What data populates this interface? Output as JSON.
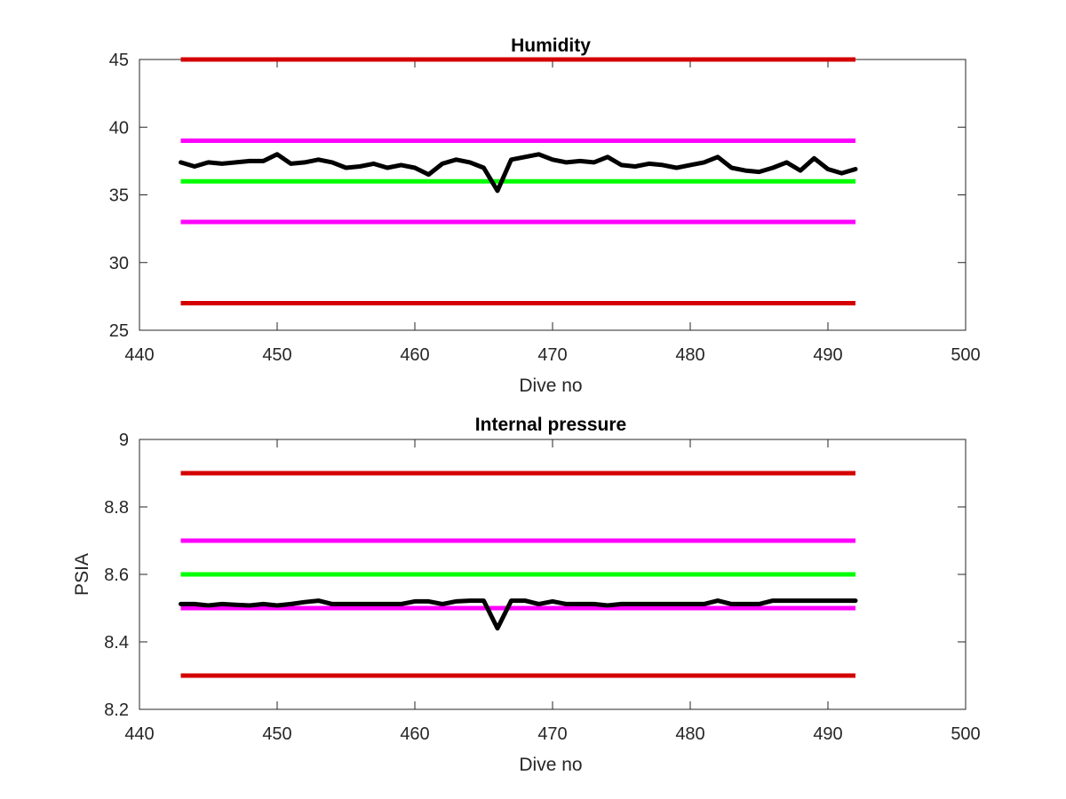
{
  "colors": {
    "red": "#d40000",
    "magenta": "#ff00ff",
    "green": "#00ff00",
    "black": "#000000",
    "axis": "#262626"
  },
  "chart_data": [
    {
      "type": "line",
      "title": "Humidity",
      "xlabel": "Dive no",
      "ylabel": "",
      "xlim": [
        440,
        500
      ],
      "ylim": [
        25,
        45
      ],
      "xticks": [
        "440",
        "450",
        "460",
        "470",
        "480",
        "490",
        "500"
      ],
      "yticks": [
        "25",
        "30",
        "35",
        "40",
        "45"
      ],
      "grid": false,
      "legend": "none",
      "reference_lines": [
        {
          "color": "red",
          "y": 45,
          "x_range": [
            443,
            492
          ]
        },
        {
          "color": "magenta",
          "y": 39,
          "x_range": [
            443,
            492
          ]
        },
        {
          "color": "green",
          "y": 36,
          "x_range": [
            443,
            492
          ]
        },
        {
          "color": "magenta",
          "y": 33,
          "x_range": [
            443,
            492
          ]
        },
        {
          "color": "red",
          "y": 27,
          "x_range": [
            443,
            492
          ]
        }
      ],
      "series": [
        {
          "color": "black",
          "x": [
            443,
            444,
            445,
            446,
            447,
            448,
            449,
            450,
            451,
            452,
            453,
            454,
            455,
            456,
            457,
            458,
            459,
            460,
            461,
            462,
            463,
            464,
            465,
            466,
            467,
            468,
            469,
            470,
            471,
            472,
            473,
            474,
            475,
            476,
            477,
            478,
            479,
            480,
            481,
            482,
            483,
            484,
            485,
            486,
            487,
            488,
            489,
            490,
            491,
            492
          ],
          "values": [
            37.4,
            37.1,
            37.4,
            37.3,
            37.4,
            37.5,
            37.5,
            38.0,
            37.3,
            37.4,
            37.6,
            37.4,
            37.0,
            37.1,
            37.3,
            37.0,
            37.2,
            37.0,
            36.5,
            37.3,
            37.6,
            37.4,
            37.0,
            35.3,
            37.6,
            37.8,
            38.0,
            37.6,
            37.4,
            37.5,
            37.4,
            37.8,
            37.2,
            37.1,
            37.3,
            37.2,
            37.0,
            37.2,
            37.4,
            37.8,
            37.0,
            36.8,
            36.7,
            37.0,
            37.4,
            36.8,
            37.7,
            36.9,
            36.6,
            36.9
          ]
        }
      ]
    },
    {
      "type": "line",
      "title": "Internal pressure",
      "xlabel": "Dive no",
      "ylabel": "PSIA",
      "xlim": [
        440,
        500
      ],
      "ylim": [
        8.2,
        9.0
      ],
      "xticks": [
        "440",
        "450",
        "460",
        "470",
        "480",
        "490",
        "500"
      ],
      "yticks": [
        "8.2",
        "8.4",
        "8.6",
        "8.8",
        "9"
      ],
      "grid": false,
      "legend": "none",
      "reference_lines": [
        {
          "color": "red",
          "y": 8.9,
          "x_range": [
            443,
            492
          ]
        },
        {
          "color": "magenta",
          "y": 8.7,
          "x_range": [
            443,
            492
          ]
        },
        {
          "color": "green",
          "y": 8.6,
          "x_range": [
            443,
            492
          ]
        },
        {
          "color": "magenta",
          "y": 8.5,
          "x_range": [
            443,
            492
          ]
        },
        {
          "color": "red",
          "y": 8.3,
          "x_range": [
            443,
            492
          ]
        }
      ],
      "series": [
        {
          "color": "black",
          "x": [
            443,
            444,
            445,
            446,
            447,
            448,
            449,
            450,
            451,
            452,
            453,
            454,
            455,
            456,
            457,
            458,
            459,
            460,
            461,
            462,
            463,
            464,
            465,
            466,
            467,
            468,
            469,
            470,
            471,
            472,
            473,
            474,
            475,
            476,
            477,
            478,
            479,
            480,
            481,
            482,
            483,
            484,
            485,
            486,
            487,
            488,
            489,
            490,
            491,
            492
          ],
          "values": [
            8.512,
            8.512,
            8.508,
            8.512,
            8.51,
            8.508,
            8.512,
            8.508,
            8.512,
            8.518,
            8.522,
            8.512,
            8.512,
            8.512,
            8.512,
            8.512,
            8.512,
            8.52,
            8.52,
            8.512,
            8.52,
            8.522,
            8.522,
            8.44,
            8.522,
            8.522,
            8.512,
            8.52,
            8.512,
            8.512,
            8.512,
            8.508,
            8.512,
            8.512,
            8.512,
            8.512,
            8.512,
            8.512,
            8.512,
            8.522,
            8.512,
            8.512,
            8.512,
            8.522,
            8.522,
            8.522,
            8.522,
            8.522,
            8.522,
            8.522
          ]
        }
      ]
    }
  ]
}
